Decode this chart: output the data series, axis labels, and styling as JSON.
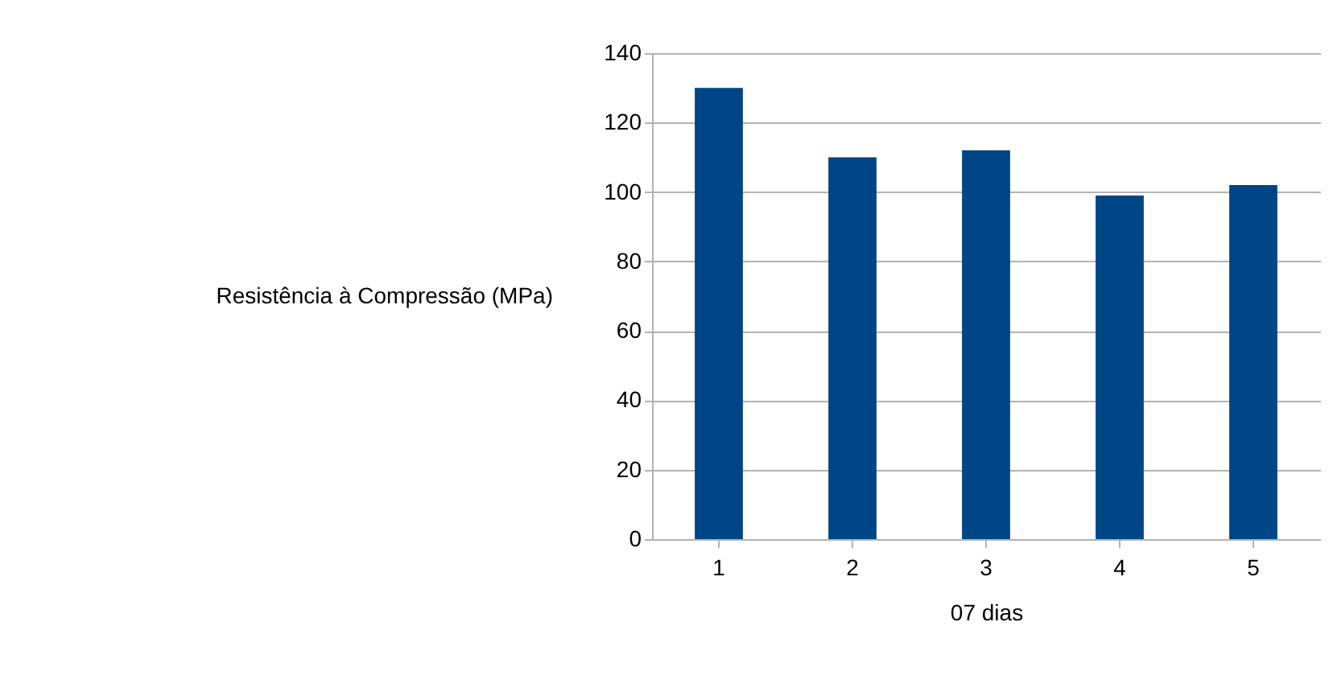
{
  "chart_data": {
    "type": "bar",
    "xlabel": "07 dias",
    "ylabel": "Resistência à Compressão (MPa)",
    "categories": [
      "1",
      "2",
      "3",
      "4",
      "5"
    ],
    "values": [
      130,
      110,
      112,
      99,
      102
    ],
    "color": "#004586",
    "ylim": [
      0,
      140
    ],
    "yticks": [
      0,
      20,
      40,
      60,
      80,
      100,
      120,
      140
    ],
    "grid": "y"
  }
}
